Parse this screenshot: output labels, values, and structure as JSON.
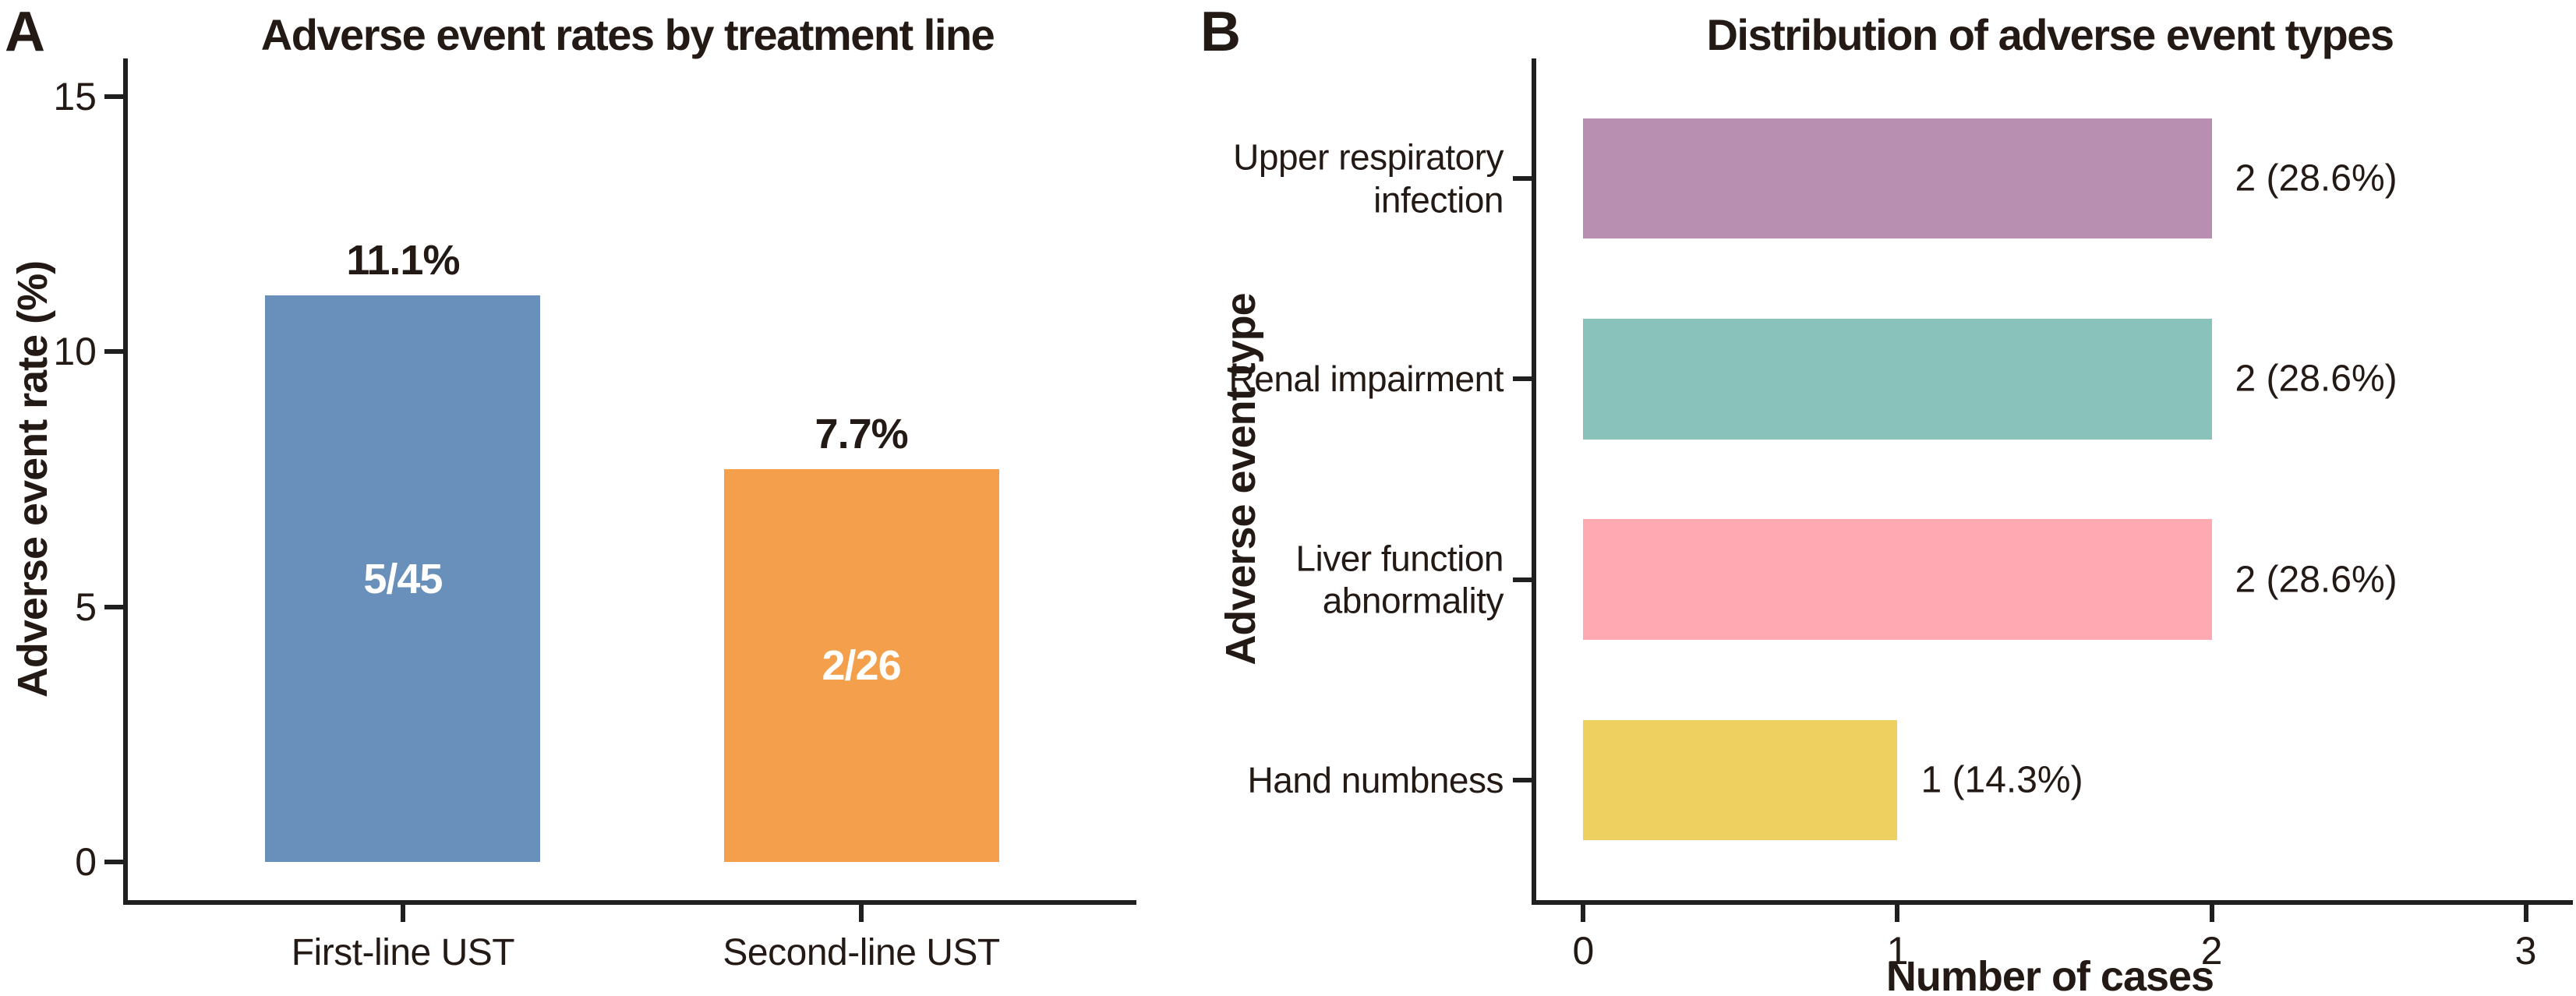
{
  "figure": {
    "background": "#ffffff",
    "text_color": "#241a15",
    "axis_color": "#1f1f1f",
    "bar_inner_label_color": "#ffffff"
  },
  "chart_data": [
    {
      "panel": "A",
      "type": "bar",
      "title": "Adverse event rates by treatment line",
      "xlabel": "",
      "ylabel": "Adverse event rate (%)",
      "categories": [
        "First-line UST",
        "Second-line UST"
      ],
      "values": [
        11.1,
        7.7
      ],
      "top_labels": [
        "11.1%",
        "7.7%"
      ],
      "inner_labels": [
        "5/45",
        "2/26"
      ],
      "bar_colors": [
        "#6890BA",
        "#F49F4C"
      ],
      "yticks": [
        0,
        5,
        10,
        15
      ],
      "ylim": [
        0,
        15
      ],
      "grid": false,
      "legend": "none"
    },
    {
      "panel": "B",
      "type": "bar-horizontal",
      "title": "Distribution of adverse event types",
      "xlabel": "Number of cases",
      "ylabel": "Adverse event type",
      "categories": [
        "Upper respiratory infection",
        "Renal impairment",
        "Liver function abnormality",
        "Hand numbness"
      ],
      "label_lines": [
        [
          "Upper respiratory",
          "infection"
        ],
        [
          "Renal impairment"
        ],
        [
          "Liver function",
          "abnormality"
        ],
        [
          "Hand numbness"
        ]
      ],
      "values": [
        2,
        2,
        2,
        1
      ],
      "end_labels": [
        "2 (28.6%)",
        "2 (28.6%)",
        "2 (28.6%)",
        "1 (14.3%)"
      ],
      "bar_colors": [
        "#B98FB1",
        "#88C2BA",
        "#FFAAB3",
        "#EDD05F"
      ],
      "xticks": [
        0,
        1,
        2,
        3
      ],
      "xlim": [
        0,
        3
      ],
      "grid": false,
      "legend": "none"
    }
  ]
}
